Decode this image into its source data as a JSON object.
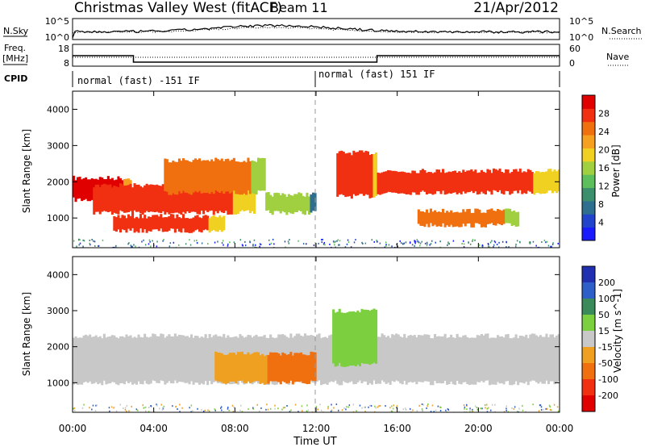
{
  "header": {
    "site": "Christmas Valley West (fitACF)",
    "beam": "Beam 11",
    "date": "21/Apr/2012"
  },
  "param_panels": {
    "nsky_label": "N.Sky",
    "nsearch_label": "N.Search",
    "freq_label_1": "Freq.",
    "freq_label_2": "[MHz]",
    "nave_label": "Nave",
    "cpid_label": "CPID",
    "nsky_ticks": [
      "10^5",
      "10^0"
    ],
    "nsearch_ticks": [
      "10^5",
      "10^0"
    ],
    "freq_ticks": [
      "18",
      "8"
    ],
    "nave_ticks": [
      "60",
      "0"
    ],
    "cpid_segments": [
      {
        "label": "normal (fast) -151 IF",
        "start_hour": 0,
        "end_hour": 12
      },
      {
        "label": "normal (fast) 151 IF",
        "start_hour": 12,
        "end_hour": 24
      }
    ],
    "freq_steps": [
      {
        "start_hour": 0,
        "end_hour": 3,
        "freq_mhz": 14.5
      },
      {
        "start_hour": 3,
        "end_hour": 15,
        "freq_mhz": 10.5
      },
      {
        "start_hour": 15,
        "end_hour": 24,
        "freq_mhz": 14.5
      }
    ]
  },
  "chart_data": [
    {
      "type": "heatmap",
      "quantity": "Power",
      "xlabel": "Time UT",
      "ylabel": "Slant Range [km]",
      "xlim": [
        0,
        24
      ],
      "ylim": [
        180,
        4500
      ],
      "yticks": [
        "1000",
        "2000",
        "3000",
        "4000"
      ],
      "xticks": [
        "00:00",
        "04:00",
        "08:00",
        "12:00",
        "16:00",
        "20:00",
        "00:00"
      ],
      "colorbar": {
        "label": "Power [dB]",
        "ticks": [
          "4",
          "8",
          "12",
          "16",
          "20",
          "24",
          "28"
        ],
        "colors": [
          "#1a1aff",
          "#2244cc",
          "#2e6e8e",
          "#3c8f6c",
          "#5cbf5c",
          "#a0d040",
          "#f0d020",
          "#f5a020",
          "#f07010",
          "#f03010",
          "#e00000"
        ]
      },
      "features": [
        {
          "from_hour": 0.0,
          "to_hour": 2.9,
          "range_km": [
            1500,
            2100
          ],
          "power_db": 28
        },
        {
          "from_hour": 1.0,
          "to_hour": 9.0,
          "range_km": [
            1150,
            1900
          ],
          "power_db": 26
        },
        {
          "from_hour": 2.0,
          "to_hour": 7.5,
          "range_km": [
            650,
            1050
          ],
          "power_db": 24
        },
        {
          "from_hour": 4.5,
          "to_hour": 9.5,
          "range_km": [
            1700,
            2600
          ],
          "power_db": 22
        },
        {
          "from_hour": 9.5,
          "to_hour": 12.0,
          "range_km": [
            1150,
            1650
          ],
          "power_db": 14
        },
        {
          "from_hour": 13.0,
          "to_hour": 15.0,
          "range_km": [
            1600,
            2800
          ],
          "power_db": 24
        },
        {
          "from_hour": 15.0,
          "to_hour": 24.0,
          "range_km": [
            1700,
            2300
          ],
          "power_db": 26
        },
        {
          "from_hour": 17.0,
          "to_hour": 22.0,
          "range_km": [
            800,
            1200
          ],
          "power_db": 22
        }
      ]
    },
    {
      "type": "heatmap",
      "quantity": "Velocity",
      "xlabel": "Time UT",
      "ylabel": "Slant Range [km]",
      "xlim": [
        0,
        24
      ],
      "ylim": [
        180,
        4500
      ],
      "yticks": [
        "1000",
        "2000",
        "3000",
        "4000"
      ],
      "xticks": [
        "00:00",
        "04:00",
        "08:00",
        "12:00",
        "16:00",
        "20:00",
        "00:00"
      ],
      "colorbar": {
        "label": "Velocity [m s^-1]",
        "ticks": [
          "200",
          "100",
          "50",
          "15",
          "-15",
          "-50",
          "-100",
          "-200"
        ],
        "colors": [
          "#2030b0",
          "#2e5ec8",
          "#3a8a5a",
          "#7cd040",
          "#c8c8c8",
          "#f0a020",
          "#f07010",
          "#f03010",
          "#e00000"
        ]
      },
      "features": [
        {
          "from_hour": 0.0,
          "to_hour": 24.0,
          "range_km": [
            1000,
            2300
          ],
          "velocity_ms": 0
        },
        {
          "from_hour": 7.0,
          "to_hour": 12.0,
          "range_km": [
            1000,
            1800
          ],
          "velocity_ms": -50
        },
        {
          "from_hour": 12.8,
          "to_hour": 15.0,
          "range_km": [
            1500,
            3000
          ],
          "velocity_ms": 40
        }
      ]
    }
  ]
}
